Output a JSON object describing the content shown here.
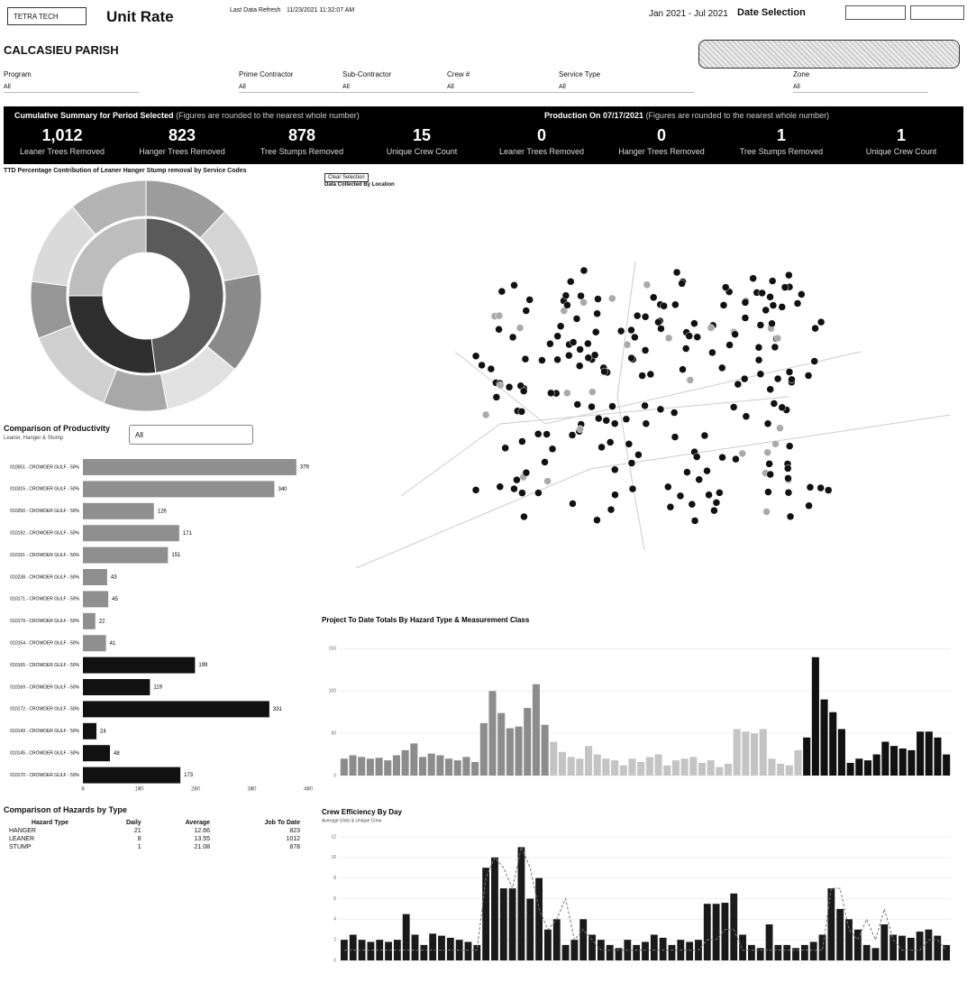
{
  "header": {
    "logo": "TETRA TECH",
    "title": "Unit Rate",
    "refresh_label": "Last Data Refresh",
    "refresh_value": "11/23/2021 11:32:07 AM",
    "date_range": "Jan 2021 - Jul 2021",
    "date_selection": "Date Selection"
  },
  "parish": "CALCASIEU PARISH",
  "filters": [
    {
      "label": "Program",
      "value": "All"
    },
    {
      "label": "Prime Contractor",
      "value": "All"
    },
    {
      "label": "Sub-Contractor",
      "value": "All"
    },
    {
      "label": "Crew #",
      "value": "All"
    },
    {
      "label": "Service Type",
      "value": "All"
    },
    {
      "label": "Zone",
      "value": "All"
    }
  ],
  "summary": {
    "title": "Cumulative Summary for Period Selected",
    "note": "(Figures are rounded to the nearest whole number)",
    "cards": [
      {
        "value": "1,012",
        "label": "Leaner Trees Removed"
      },
      {
        "value": "823",
        "label": "Hanger Trees Removed"
      },
      {
        "value": "878",
        "label": "Tree Stumps Removed"
      },
      {
        "value": "15",
        "label": "Unique Crew Count"
      }
    ]
  },
  "production": {
    "title": "Production On 07/17/2021",
    "note": "(Figures are rounded to the nearest whole number)",
    "cards": [
      {
        "value": "0",
        "label": "Leaner Trees Removed"
      },
      {
        "value": "0",
        "label": "Hanger Trees Removed"
      },
      {
        "value": "1",
        "label": "Tree Stumps Removed"
      },
      {
        "value": "1",
        "label": "Unique Crew Count"
      }
    ]
  },
  "donut": {
    "title": "TTD Percentage Contribution of Leaner Hanger Stump removal by Service Codes",
    "chart_data": {
      "type": "donut",
      "inner": {
        "values": [
          48,
          27,
          25
        ],
        "colors": [
          "#5a5a5a",
          "#2e2e2e",
          "#bdbdbd"
        ]
      },
      "outer": {
        "values": [
          12,
          10,
          14,
          11,
          9,
          13,
          8,
          12,
          11
        ],
        "colors": [
          "#9c9c9c",
          "#d4d4d4",
          "#8a8a8a",
          "#e2e2e2",
          "#a8a8a8",
          "#cfcfcf",
          "#969696",
          "#dadada",
          "#b4b4b4"
        ]
      }
    }
  },
  "productivity": {
    "title": "Comparison of Productivity",
    "subtitle": "Leaner, Hanger & Stump",
    "dropdown": "All",
    "chart_data": {
      "type": "hbar",
      "categories": [
        "010051 - CROWDER GULF - 50%",
        "010315 - CROWDER GULF - 50%",
        "010250 - CROWDER GULF - 50%",
        "010192 - CROWDER GULF - 50%",
        "010151 - CROWDER GULF - 50%",
        "010238 - CROWDER GULF - 50%",
        "010171 - CROWDER GULF - 50%",
        "010179 - CROWDER GULF - 50%",
        "010154 - CROWDER GULF - 50%",
        "010165 - CROWDER GULF - 50%",
        "010169 - CROWDER GULF - 50%",
        "010172 - CROWDER GULF - 50%",
        "010143 - CROWDER GULF - 50%",
        "010145 - CROWDER GULF - 50%",
        "010170 - CROWDER GULF - 50%"
      ],
      "values": [
        379,
        340,
        126,
        171,
        151,
        43,
        45,
        22,
        41,
        199,
        119,
        331,
        24,
        48,
        173
      ],
      "colors": [
        "#8f8f8f",
        "#8f8f8f",
        "#8f8f8f",
        "#8f8f8f",
        "#8f8f8f",
        "#8f8f8f",
        "#8f8f8f",
        "#8f8f8f",
        "#8f8f8f",
        "#111111",
        "#111111",
        "#111111",
        "#111111",
        "#111111",
        "#111111"
      ],
      "xlim": [
        0,
        400
      ],
      "xticks": [
        0,
        100,
        200,
        300,
        400
      ]
    }
  },
  "hazards": {
    "title": "Comparison of Hazards by Type",
    "columns": [
      "Hazard Type",
      "Daily",
      "Average",
      "Job To Date"
    ],
    "rows": [
      [
        "HANGER",
        "21",
        "12.66",
        "823"
      ],
      [
        "LEANER",
        "8",
        "13.55",
        "1012"
      ],
      [
        "STUMP",
        "1",
        "21.08",
        "878"
      ]
    ]
  },
  "map": {
    "button": "Clear Selection",
    "title": "Data Collected By Location"
  },
  "project": {
    "title": "Project To Date Totals By Hazard Type & Measurement Class",
    "chart_data": {
      "type": "bar",
      "ylim": [
        0,
        160
      ],
      "yticks": [
        0,
        50,
        100,
        150
      ],
      "groups": [
        {
          "color": "#8c8c8c",
          "values": [
            20,
            24,
            22,
            20,
            21,
            18,
            24,
            30,
            38,
            22,
            26,
            24,
            20,
            18,
            22,
            16,
            62,
            100,
            74,
            56,
            58,
            80,
            108,
            60
          ]
        },
        {
          "color": "#c4c4c4",
          "values": [
            40,
            28,
            22,
            20,
            35,
            25,
            20,
            18,
            12,
            20,
            16,
            22,
            25,
            12,
            18,
            20,
            22,
            15,
            18,
            10,
            14,
            55,
            52,
            50,
            55,
            20,
            14,
            12,
            30
          ]
        },
        {
          "color": "#111111",
          "values": [
            45,
            140,
            90,
            75,
            55,
            15,
            20,
            18,
            25,
            40,
            35,
            32,
            30,
            52,
            52,
            45,
            25
          ]
        }
      ]
    }
  },
  "crew": {
    "title": "Crew Efficiency By Day",
    "subtitle": "Average Units & Unique Crew",
    "chart_data": {
      "type": "combo",
      "ylim": [
        0,
        12
      ],
      "yticks": [
        0,
        2,
        4,
        6,
        8,
        10,
        12
      ],
      "bars": {
        "color": "#1a1a1a",
        "values": [
          2,
          2.5,
          2,
          1.8,
          2,
          1.8,
          2,
          4.5,
          2.5,
          1.5,
          2.6,
          2.4,
          2.2,
          2,
          1.8,
          1.5,
          9,
          10,
          7,
          7,
          11,
          6,
          8,
          3,
          4,
          1.5,
          2,
          4,
          2.5,
          2,
          1.5,
          1.2,
          2,
          1.5,
          1.8,
          2.5,
          2.2,
          1.5,
          2,
          1.8,
          2,
          5.5,
          5.5,
          5.6,
          6.5,
          2.5,
          1.5,
          1.2,
          3.5,
          1.5,
          1.5,
          1.2,
          1.5,
          1.8,
          2.5,
          7,
          5,
          4,
          3,
          1.5,
          1.2,
          3.5,
          2.5,
          2.4,
          2.2,
          2.8,
          3,
          2.4,
          1.5
        ]
      },
      "line": {
        "color": "#777777",
        "values": [
          1,
          1,
          1,
          1,
          1,
          1,
          1,
          1,
          1,
          1,
          1,
          1,
          1,
          1,
          1,
          1,
          8,
          10,
          9,
          7,
          11,
          9,
          5,
          3,
          4,
          6,
          2,
          3,
          2,
          1,
          1,
          1,
          1,
          1,
          1,
          1,
          1,
          1,
          1,
          1,
          1,
          2,
          2,
          3,
          3,
          1,
          1,
          1,
          1,
          1,
          1,
          1,
          1,
          1,
          1,
          7,
          7,
          3,
          2,
          4,
          2,
          5,
          2,
          1,
          1,
          1,
          2,
          2,
          1
        ]
      }
    }
  }
}
